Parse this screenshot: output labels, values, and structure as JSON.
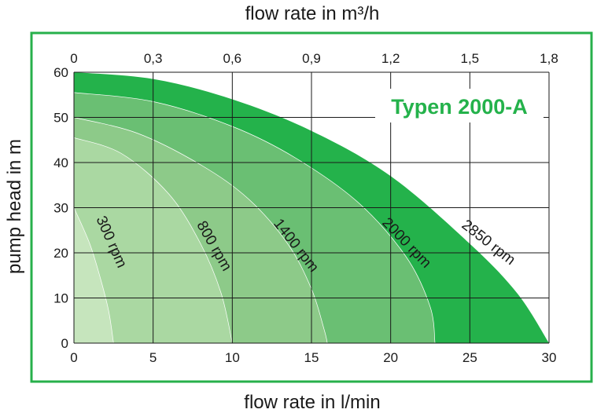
{
  "chart_data": {
    "type": "area",
    "title": "Typen 2000-A",
    "xlabel": "flow rate in l/min",
    "x2label": "flow rate in m³/h",
    "ylabel": "pump head in m",
    "xlim": [
      0,
      30
    ],
    "ylim": [
      0,
      60
    ],
    "x_ticks": [
      "0",
      "5",
      "10",
      "15",
      "20",
      "25",
      "30"
    ],
    "x_tick_values": [
      0,
      5,
      10,
      15,
      20,
      25,
      30
    ],
    "x2_ticks": [
      "0",
      "0,3",
      "0,6",
      "0,9",
      "1,2",
      "1,5",
      "1,8"
    ],
    "x2_tick_values": [
      0,
      5,
      10,
      15,
      20,
      25,
      30
    ],
    "y_ticks": [
      "0",
      "10",
      "20",
      "30",
      "40",
      "50",
      "60"
    ],
    "y_tick_values": [
      0,
      10,
      20,
      30,
      40,
      50,
      60
    ],
    "grid": true,
    "series": [
      {
        "name": "2850 rpm",
        "color": "#24b24b",
        "points": [
          [
            0,
            60
          ],
          [
            5,
            58.5
          ],
          [
            10,
            54
          ],
          [
            15,
            47
          ],
          [
            20,
            37
          ],
          [
            25,
            22
          ],
          [
            28,
            11
          ],
          [
            30,
            0
          ]
        ]
      },
      {
        "name": "2000 rpm",
        "color": "#6abf73",
        "points": [
          [
            0,
            55.5
          ],
          [
            5,
            53.5
          ],
          [
            10,
            48
          ],
          [
            14,
            41
          ],
          [
            18,
            31
          ],
          [
            21,
            19
          ],
          [
            22.5,
            8
          ],
          [
            22.8,
            0
          ]
        ]
      },
      {
        "name": "1400 rpm",
        "color": "#8dca89",
        "points": [
          [
            0,
            50
          ],
          [
            4,
            46.5
          ],
          [
            8,
            39.5
          ],
          [
            11,
            32
          ],
          [
            13.5,
            22
          ],
          [
            15,
            12
          ],
          [
            15.8,
            3
          ],
          [
            16,
            0
          ]
        ]
      },
      {
        "name": "800 rpm",
        "color": "#aad8a2",
        "points": [
          [
            0,
            45.5
          ],
          [
            3,
            42
          ],
          [
            6,
            33
          ],
          [
            8,
            22
          ],
          [
            9.3,
            11
          ],
          [
            10,
            0
          ]
        ]
      },
      {
        "name": "300 rpm",
        "color": "#c6e5bd",
        "points": [
          [
            0,
            30
          ],
          [
            1,
            22
          ],
          [
            1.7,
            14
          ],
          [
            2.2,
            7
          ],
          [
            2.5,
            0
          ]
        ]
      }
    ]
  }
}
